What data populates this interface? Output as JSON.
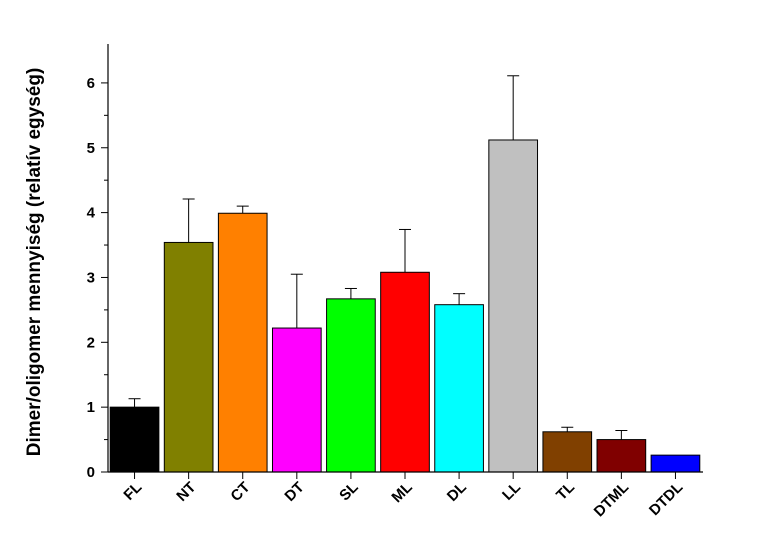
{
  "chart_data": {
    "type": "bar",
    "title": "",
    "xlabel": "",
    "ylabel": "Dimer/oligomer mennyiség (relatív egység)",
    "ylim": [
      0,
      6.6
    ],
    "yticks": [
      0,
      1,
      2,
      3,
      4,
      5,
      6
    ],
    "grid": false,
    "legend": "none",
    "categories": [
      "FL",
      "NT",
      "CT",
      "DT",
      "SL",
      "ML",
      "DL",
      "LL",
      "TL",
      "DTML",
      "DTDL"
    ],
    "values": [
      1.0,
      3.54,
      3.99,
      2.22,
      2.67,
      3.08,
      2.58,
      5.12,
      0.62,
      0.5,
      0.26
    ],
    "error": [
      0.13,
      0.67,
      0.11,
      0.83,
      0.16,
      0.66,
      0.17,
      0.99,
      0.07,
      0.14,
      0.0
    ],
    "colors": [
      "#000000",
      "#808000",
      "#FF8000",
      "#FF00FF",
      "#00FF00",
      "#FF0000",
      "#00FFFF",
      "#C0C0C0",
      "#804000",
      "#800000",
      "#0000FF"
    ]
  }
}
